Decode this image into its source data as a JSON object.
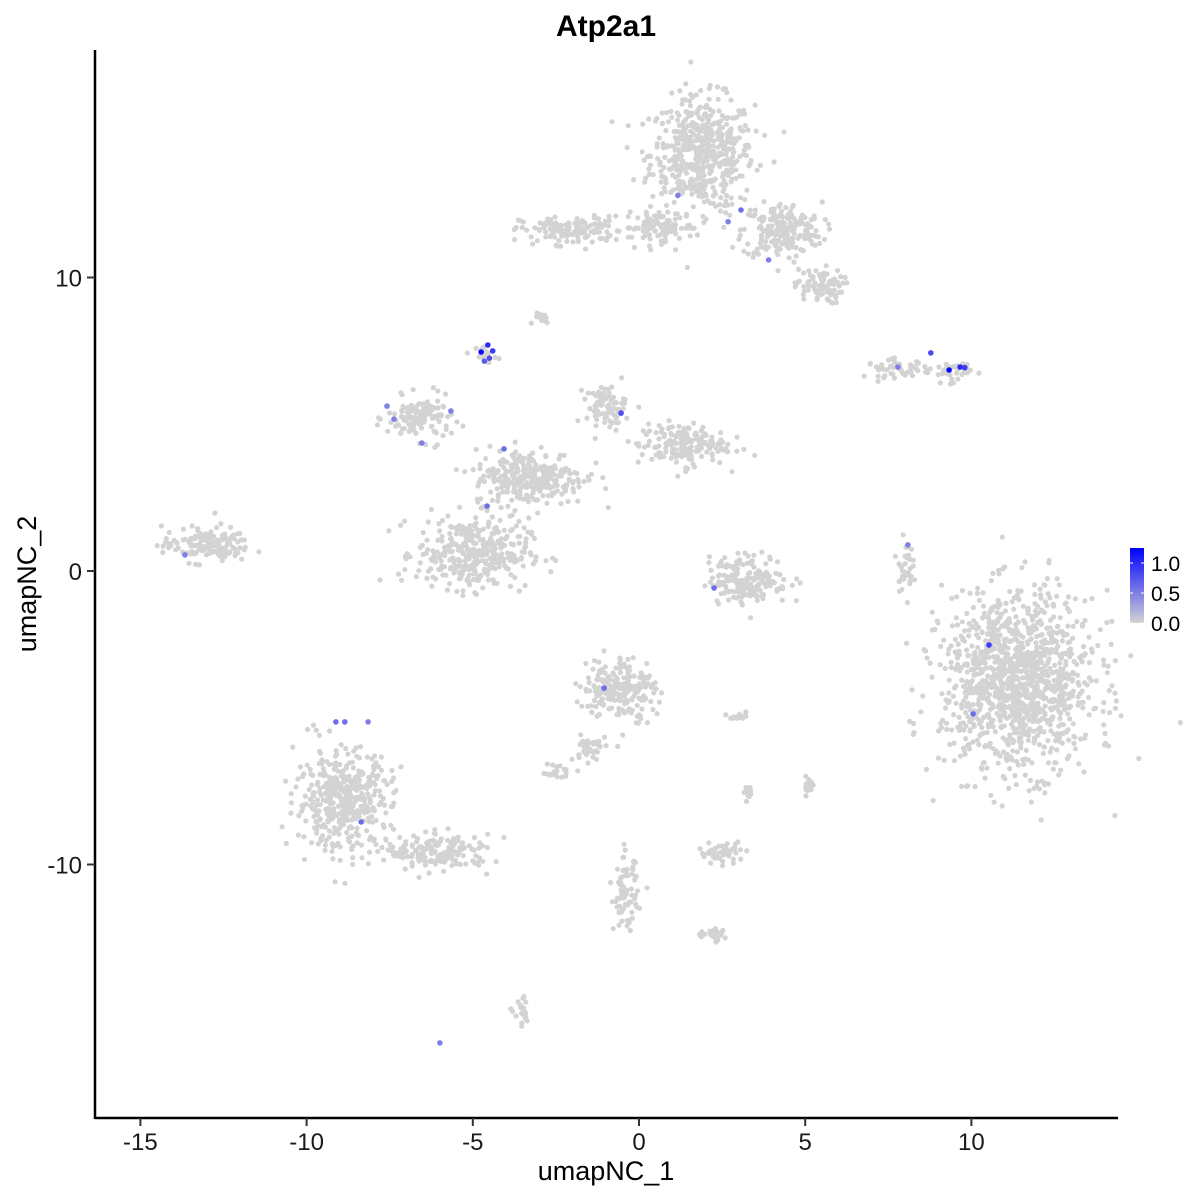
{
  "chart_data": {
    "type": "scatter",
    "title": "Atp2a1",
    "xlabel": "umapNC_1",
    "ylabel": "umapNC_2",
    "xlim": [
      -16.4,
      14.4
    ],
    "ylim": [
      -18.6,
      17.7
    ],
    "xticks": [
      -15,
      -10,
      -5,
      0,
      5,
      10
    ],
    "yticks": [
      -10,
      0,
      10
    ],
    "xtick_labels": [
      "-15",
      "-10",
      "-5",
      "0",
      "5",
      "10"
    ],
    "ytick_labels": [
      "-10",
      "0",
      "10"
    ],
    "grid": false,
    "color_scale": {
      "low": "#D3D3D3",
      "high": "#0000FF",
      "min": 0,
      "max": 1.25,
      "ticks": [
        0,
        0.5,
        1.0
      ],
      "tick_labels": [
        "0.0",
        "0.5",
        "1.0"
      ]
    },
    "legend_placement": "right",
    "background_clusters": [
      {
        "center": [
          1.9,
          14.2
        ],
        "spread": [
          1.3,
          1.6
        ]
      },
      {
        "center": [
          4.3,
          11.6
        ],
        "spread": [
          1.0,
          0.8
        ]
      },
      {
        "center": [
          5.4,
          9.7
        ],
        "spread": [
          0.6,
          0.5
        ]
      },
      {
        "center": [
          -2.0,
          11.6
        ],
        "spread": [
          1.3,
          0.4
        ]
      },
      {
        "center": [
          0.6,
          11.7
        ],
        "spread": [
          0.9,
          0.4
        ]
      },
      {
        "center": [
          -2.9,
          8.6
        ],
        "spread": [
          0.2,
          0.15
        ]
      },
      {
        "center": [
          -4.6,
          7.4
        ],
        "spread": [
          0.25,
          0.25
        ]
      },
      {
        "center": [
          7.8,
          6.9
        ],
        "spread": [
          0.8,
          0.25
        ]
      },
      {
        "center": [
          9.4,
          6.8
        ],
        "spread": [
          0.5,
          0.3
        ]
      },
      {
        "center": [
          -6.6,
          5.2
        ],
        "spread": [
          0.8,
          0.6
        ]
      },
      {
        "center": [
          -5.0,
          0.6
        ],
        "spread": [
          1.4,
          1.0
        ]
      },
      {
        "center": [
          -3.3,
          3.2
        ],
        "spread": [
          1.4,
          0.8
        ]
      },
      {
        "center": [
          -1.0,
          5.6
        ],
        "spread": [
          0.5,
          0.6
        ]
      },
      {
        "center": [
          1.3,
          4.3
        ],
        "spread": [
          1.1,
          0.6
        ]
      },
      {
        "center": [
          -13.0,
          0.9
        ],
        "spread": [
          1.1,
          0.5
        ]
      },
      {
        "center": [
          3.3,
          -0.3
        ],
        "spread": [
          1.0,
          0.7
        ]
      },
      {
        "center": [
          8.0,
          0.2
        ],
        "spread": [
          0.2,
          0.7
        ]
      },
      {
        "center": [
          11.4,
          -3.8
        ],
        "spread": [
          1.9,
          2.5
        ]
      },
      {
        "center": [
          -0.6,
          -4.0
        ],
        "spread": [
          0.9,
          0.9
        ]
      },
      {
        "center": [
          -8.9,
          -7.8
        ],
        "spread": [
          1.2,
          1.4
        ]
      },
      {
        "center": [
          -6.0,
          -9.6
        ],
        "spread": [
          1.3,
          0.5
        ]
      },
      {
        "center": [
          -2.5,
          -6.8
        ],
        "spread": [
          0.4,
          0.2
        ]
      },
      {
        "center": [
          2.5,
          -9.6
        ],
        "spread": [
          0.6,
          0.3
        ]
      },
      {
        "center": [
          -0.4,
          -11.0
        ],
        "spread": [
          0.3,
          1.0
        ]
      },
      {
        "center": [
          2.2,
          -12.4
        ],
        "spread": [
          0.5,
          0.2
        ]
      },
      {
        "center": [
          -3.5,
          -15.1
        ],
        "spread": [
          0.2,
          0.4
        ]
      },
      {
        "center": [
          3.0,
          -5.0
        ],
        "spread": [
          0.3,
          0.1
        ]
      },
      {
        "center": [
          5.1,
          -7.3
        ],
        "spread": [
          0.15,
          0.3
        ]
      },
      {
        "center": [
          3.3,
          -7.6
        ],
        "spread": [
          0.1,
          0.3
        ]
      },
      {
        "center": [
          -1.5,
          -6.0
        ],
        "spread": [
          0.4,
          0.4
        ]
      }
    ],
    "expressing_points": [
      {
        "x": -4.75,
        "y": 7.46,
        "value": 1.2
      },
      {
        "x": -4.55,
        "y": 7.7,
        "value": 1.0
      },
      {
        "x": -4.5,
        "y": 7.25,
        "value": 0.8
      },
      {
        "x": -4.65,
        "y": 7.15,
        "value": 0.7
      },
      {
        "x": -4.4,
        "y": 7.5,
        "value": 0.9
      },
      {
        "x": 1.17,
        "y": 12.8,
        "value": 0.5
      },
      {
        "x": 2.68,
        "y": 11.9,
        "value": 0.5
      },
      {
        "x": 3.07,
        "y": 12.3,
        "value": 0.6
      },
      {
        "x": 3.9,
        "y": 10.6,
        "value": 0.5
      },
      {
        "x": -7.58,
        "y": 5.62,
        "value": 0.5
      },
      {
        "x": -7.37,
        "y": 5.18,
        "value": 0.5
      },
      {
        "x": -5.66,
        "y": 5.45,
        "value": 0.5
      },
      {
        "x": -6.53,
        "y": 4.36,
        "value": 0.5
      },
      {
        "x": -4.06,
        "y": 4.16,
        "value": 0.6
      },
      {
        "x": -4.57,
        "y": 2.21,
        "value": 0.6
      },
      {
        "x": -0.54,
        "y": 5.38,
        "value": 0.8
      },
      {
        "x": -13.66,
        "y": 0.55,
        "value": 0.5
      },
      {
        "x": 2.26,
        "y": -0.58,
        "value": 0.6
      },
      {
        "x": 8.09,
        "y": 0.89,
        "value": 0.5
      },
      {
        "x": 7.79,
        "y": 6.95,
        "value": 0.5
      },
      {
        "x": 8.78,
        "y": 7.43,
        "value": 0.8
      },
      {
        "x": 9.33,
        "y": 6.85,
        "value": 1.2
      },
      {
        "x": 9.66,
        "y": 6.95,
        "value": 1.0
      },
      {
        "x": 9.8,
        "y": 6.93,
        "value": 0.9
      },
      {
        "x": 10.53,
        "y": -2.52,
        "value": 0.9
      },
      {
        "x": 10.05,
        "y": -4.87,
        "value": 0.6
      },
      {
        "x": -1.05,
        "y": -3.99,
        "value": 0.6
      },
      {
        "x": -9.12,
        "y": -5.14,
        "value": 0.6
      },
      {
        "x": -8.85,
        "y": -5.14,
        "value": 0.6
      },
      {
        "x": -8.15,
        "y": -5.14,
        "value": 0.5
      },
      {
        "x": -8.36,
        "y": -8.55,
        "value": 0.6
      },
      {
        "x": -5.99,
        "y": -16.08,
        "value": 0.5
      }
    ]
  }
}
